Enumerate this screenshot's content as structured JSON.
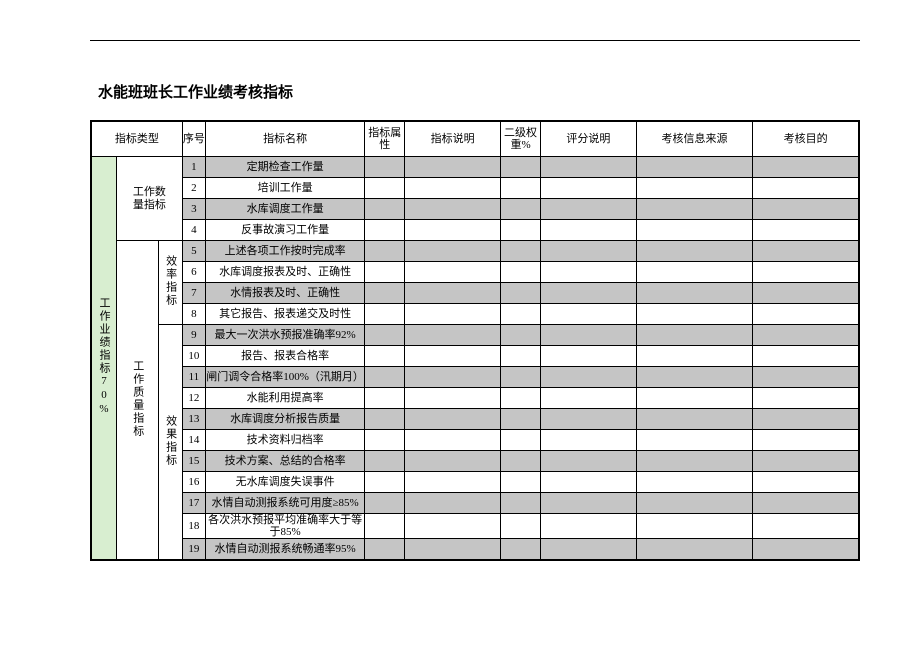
{
  "title": "水能班班长工作业绩考核指标",
  "headers": {
    "type": "指标类型",
    "seq": "序号",
    "name": "指标名称",
    "attr": "指标属性",
    "desc": "指标说明",
    "weight": "二级权重%",
    "score": "评分说明",
    "source": "考核信息来源",
    "purpose": "考核目的"
  },
  "cat1": "工作业绩指标70%",
  "cat2a": "工作数量指标",
  "cat2b": "工作质量指标",
  "cat3a": "效率指标",
  "cat3b": "效果指标",
  "rows": [
    {
      "n": "1",
      "name": "定期检查工作量",
      "shade": "gray"
    },
    {
      "n": "2",
      "name": "培训工作量",
      "shade": "white"
    },
    {
      "n": "3",
      "name": "水库调度工作量",
      "shade": "gray"
    },
    {
      "n": "4",
      "name": "反事故演习工作量",
      "shade": "white"
    },
    {
      "n": "5",
      "name": "上述各项工作按时完成率",
      "shade": "gray"
    },
    {
      "n": "6",
      "name": "水库调度报表及时、正确性",
      "shade": "white"
    },
    {
      "n": "7",
      "name": "水情报表及时、正确性",
      "shade": "gray"
    },
    {
      "n": "8",
      "name": "其它报告、报表递交及时性",
      "shade": "white"
    },
    {
      "n": "9",
      "name": "最大一次洪水预报准确率92%",
      "shade": "gray"
    },
    {
      "n": "10",
      "name": "报告、报表合格率",
      "shade": "white"
    },
    {
      "n": "11",
      "name": "闸门调令合格率100%（汛期月）",
      "shade": "gray"
    },
    {
      "n": "12",
      "name": "水能利用提高率",
      "shade": "white"
    },
    {
      "n": "13",
      "name": "水库调度分析报告质量",
      "shade": "gray"
    },
    {
      "n": "14",
      "name": "技术资料归档率",
      "shade": "white"
    },
    {
      "n": "15",
      "name": "技术方案、总结的合格率",
      "shade": "gray"
    },
    {
      "n": "16",
      "name": "无水库调度失误事件",
      "shade": "white"
    },
    {
      "n": "17",
      "name": "水情自动测报系统可用度≥85%",
      "shade": "gray"
    },
    {
      "n": "18",
      "name": "各次洪水预报平均准确率大于等于85%",
      "shade": "white"
    },
    {
      "n": "19",
      "name": "水情自动测报系统畅通率95%",
      "shade": "gray"
    }
  ],
  "colors": {
    "green": "#d8eed0",
    "gray": "#c5c5c5",
    "white": "#ffffff",
    "border": "#000000"
  }
}
